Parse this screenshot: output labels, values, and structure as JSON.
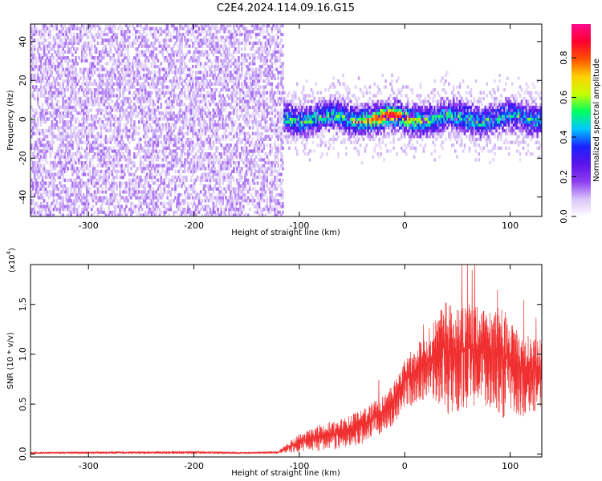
{
  "title": "C2E4.2024.114.09.16.G15",
  "colors": {
    "snr_line": "#f03030",
    "background": "#ffffff",
    "axis": "#000000",
    "colormap": [
      "#ffffff",
      "#d8c4f8",
      "#8c3cf0",
      "#5a14e8",
      "#1a22ff",
      "#00c8ff",
      "#00ff60",
      "#c8ff00",
      "#ffd000",
      "#ff5000",
      "#ff0030",
      "#ff0a8c"
    ]
  },
  "chart_data": [
    {
      "type": "heatmap",
      "title": "C2E4.2024.114.09.16.G15",
      "xlabel": "Height of straight line (km)",
      "ylabel": "Frequency (Hz)",
      "xlim": [
        -355,
        130
      ],
      "ylim": [
        -50,
        49
      ],
      "xticks": [
        -300,
        -200,
        -100,
        0,
        100
      ],
      "yticks": [
        -40,
        -20,
        0,
        20,
        40
      ],
      "colorbar": {
        "label": "Normalized spectral amplitude",
        "range": [
          0.0,
          0.97
        ],
        "ticks": [
          "0.0",
          "0.2",
          "0.4",
          "0.6",
          "0.8"
        ],
        "tick_values": [
          0.0,
          0.2,
          0.4,
          0.6,
          0.8
        ]
      },
      "regions": [
        {
          "description": "diffuse low-amplitude noise over full frequency range",
          "x_range": [
            -355,
            -115
          ],
          "y_range": [
            -50,
            49
          ],
          "amplitude_range": [
            0.05,
            0.15
          ]
        },
        {
          "description": "narrow signal band near 0 Hz",
          "x_range": [
            -120,
            130
          ],
          "y_center": 0,
          "y_halfwidth": 8,
          "amplitude_range": [
            0.1,
            0.97
          ],
          "peak_x": -15
        }
      ]
    },
    {
      "type": "line",
      "xlabel": "Height of straight line (km)",
      "ylabel": "SNR (10 * v/v)",
      "yscale_label": "(x10",
      "yscale_exp": "4",
      "yscale_close": ")",
      "xlim": [
        -355,
        130
      ],
      "ylim": [
        -0.03,
        1.9
      ],
      "xticks": [
        -300,
        -200,
        -100,
        0,
        100
      ],
      "yticks": [
        0.0,
        0.5,
        1.0,
        1.5
      ],
      "ytick_labels": [
        "0.0",
        "0.5",
        "1.0",
        "1.5"
      ],
      "series": [
        {
          "envelope_x": [
            -355,
            -200,
            -150,
            -120,
            -110,
            -100,
            -80,
            -60,
            -40,
            -20,
            -10,
            0,
            10,
            20,
            30,
            40,
            50,
            60,
            70,
            80,
            90,
            100,
            110,
            120,
            130
          ],
          "envelope_low": [
            0.0,
            0.0,
            0.0,
            0.0,
            0.01,
            0.02,
            0.03,
            0.05,
            0.1,
            0.2,
            0.3,
            0.45,
            0.5,
            0.55,
            0.5,
            0.4,
            0.4,
            0.45,
            0.5,
            0.45,
            0.35,
            0.3,
            0.35,
            0.4,
            0.45
          ],
          "envelope_high": [
            0.02,
            0.03,
            0.02,
            0.03,
            0.12,
            0.2,
            0.3,
            0.35,
            0.45,
            0.6,
            0.75,
            0.95,
            1.1,
            1.2,
            1.4,
            1.55,
            1.45,
            1.5,
            1.5,
            1.45,
            1.5,
            1.4,
            1.25,
            1.2,
            1.15
          ]
        }
      ]
    }
  ]
}
